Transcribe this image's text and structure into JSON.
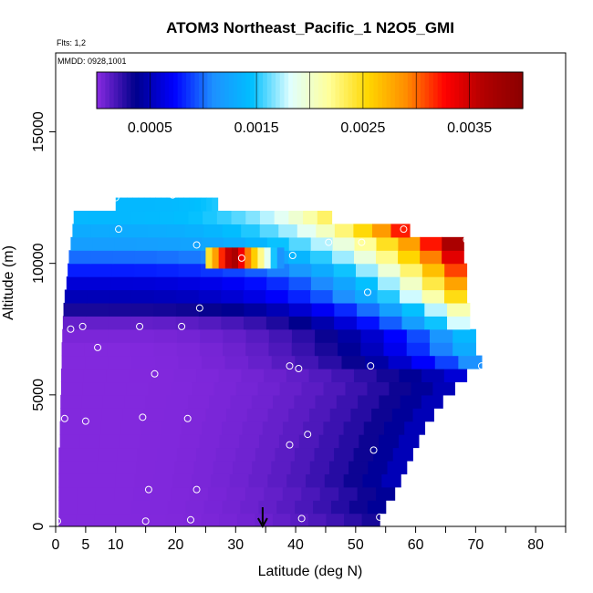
{
  "chart_data": {
    "type": "heatmap",
    "title": "ATOM3 Northeast_Pacific_1 N2O5_GMI",
    "flights_label": "Flts: 1,2",
    "dates_label": "MMDD: 0928,1001",
    "xlabel": "Latitude (deg N)",
    "ylabel": "Altitude (m)",
    "xlim": [
      0,
      85
    ],
    "ylim": [
      0,
      18000
    ],
    "x_ticks": [
      0,
      5,
      10,
      20,
      30,
      40,
      50,
      60,
      70,
      80
    ],
    "x_minor_ticks": [
      15,
      25,
      35,
      45,
      55,
      65,
      75,
      85
    ],
    "y_ticks": [
      0,
      5000,
      10000,
      15000
    ],
    "colorbar": {
      "vmin": 0,
      "vmax": 0.004,
      "ticks": [
        0.0005,
        0.0015,
        0.0025,
        0.0035
      ],
      "tick_labels": [
        "0.0005",
        "0.0015",
        "0.0025",
        "0.0035"
      ],
      "colors": [
        "#8a2be2",
        "#00008b",
        "#0000ff",
        "#1e90ff",
        "#00bfff",
        "#e0ffff",
        "#ffff99",
        "#ffd700",
        "#ff8c00",
        "#ff0000",
        "#b00000",
        "#8b0000"
      ]
    },
    "grid": false,
    "curtain_bands": [
      {
        "y0": 0,
        "y1": 500,
        "x0": 0.5,
        "x1": 54,
        "v": 2e-05,
        "edge_v": 0.0003
      },
      {
        "y0": 500,
        "y1": 1000,
        "x0": 0.5,
        "x1": 55,
        "v": 2e-05,
        "edge_v": 0.0004
      },
      {
        "y0": 1000,
        "y1": 1500,
        "x0": 0.5,
        "x1": 56.5,
        "v": 2e-05,
        "edge_v": 0.0004
      },
      {
        "y0": 1500,
        "y1": 2000,
        "x0": 0.5,
        "x1": 57.5,
        "v": 2e-05,
        "edge_v": 0.0005
      },
      {
        "y0": 2000,
        "y1": 2500,
        "x0": 0.5,
        "x1": 58.5,
        "v": 2e-05,
        "edge_v": 0.0005
      },
      {
        "y0": 2500,
        "y1": 3000,
        "x0": 0.5,
        "x1": 59.5,
        "v": 2e-05,
        "edge_v": 0.0005
      },
      {
        "y0": 3000,
        "y1": 3500,
        "x0": 0.7,
        "x1": 60.5,
        "v": 2e-05,
        "edge_v": 0.0005
      },
      {
        "y0": 3500,
        "y1": 4000,
        "x0": 0.7,
        "x1": 61.5,
        "v": 2e-05,
        "edge_v": 0.0005
      },
      {
        "y0": 4000,
        "y1": 4500,
        "x0": 0.8,
        "x1": 63,
        "v": 2e-05,
        "edge_v": 0.0005
      },
      {
        "y0": 4500,
        "y1": 5000,
        "x0": 0.8,
        "x1": 64.5,
        "v": 2e-05,
        "edge_v": 0.0005
      },
      {
        "y0": 5000,
        "y1": 5500,
        "x0": 0.9,
        "x1": 66.5,
        "v": 2e-05,
        "edge_v": 0.0005
      },
      {
        "y0": 5500,
        "y1": 6000,
        "x0": 0.9,
        "x1": 68.5,
        "v": 2e-05,
        "edge_v": 0.0006
      },
      {
        "y0": 6000,
        "y1": 6500,
        "x0": 1.0,
        "x1": 71,
        "v": 2e-05,
        "edge_v": 0.0011
      },
      {
        "y0": 6500,
        "y1": 7000,
        "x0": 1.0,
        "x1": 70,
        "v": 2e-05,
        "edge_v": 0.0013
      },
      {
        "y0": 7000,
        "y1": 7500,
        "x0": 1.1,
        "x1": 70,
        "v": 4e-05,
        "edge_v": 0.0014
      },
      {
        "y0": 7500,
        "y1": 8000,
        "x0": 1.2,
        "x1": 69,
        "v": 0.0001,
        "edge_v": 0.0018
      },
      {
        "y0": 8000,
        "y1": 8500,
        "x0": 1.3,
        "x1": 69,
        "v": 0.0003,
        "edge_v": 0.0021
      },
      {
        "y0": 8500,
        "y1": 9000,
        "x0": 1.5,
        "x1": 68.5,
        "v": 0.0005,
        "edge_v": 0.0025
      },
      {
        "y0": 9000,
        "y1": 9500,
        "x0": 1.8,
        "x1": 68.5,
        "v": 0.0006,
        "edge_v": 0.0028
      },
      {
        "y0": 9500,
        "y1": 10000,
        "x0": 2.0,
        "x1": 68.5,
        "v": 0.0008,
        "edge_v": 0.0031
      },
      {
        "y0": 10000,
        "y1": 10500,
        "x0": 2.2,
        "x1": 68,
        "v": 0.001,
        "edge_v": 0.0034
      },
      {
        "y0": 10500,
        "y1": 11000,
        "x0": 2.5,
        "x1": 68,
        "v": 0.0012,
        "edge_v": 0.0037
      },
      {
        "y0": 11000,
        "y1": 11500,
        "x0": 2.8,
        "x1": 59,
        "v": 0.0013,
        "edge_v": 0.0032
      },
      {
        "y0": 11500,
        "y1": 12000,
        "x0": 3.0,
        "x1": 46,
        "v": 0.0014,
        "edge_v": 0.0023
      },
      {
        "y0": 12000,
        "y1": 12500,
        "x0": 10,
        "x1": 27,
        "v": 0.0014,
        "edge_v": 0.0015
      }
    ],
    "hotspot": {
      "y0": 9800,
      "y1": 10600,
      "x0": 25,
      "x1": 38,
      "v": 0.0038
    },
    "flight_points": [
      {
        "x": 0.3,
        "y": 200
      },
      {
        "x": 15,
        "y": 200
      },
      {
        "x": 22.5,
        "y": 250
      },
      {
        "x": 41,
        "y": 300
      },
      {
        "x": 54,
        "y": 350
      },
      {
        "x": 15.5,
        "y": 1400
      },
      {
        "x": 23.5,
        "y": 1400
      },
      {
        "x": 53,
        "y": 2900
      },
      {
        "x": 39,
        "y": 3100
      },
      {
        "x": 42,
        "y": 3500
      },
      {
        "x": 1.5,
        "y": 4100
      },
      {
        "x": 5,
        "y": 4000
      },
      {
        "x": 14.5,
        "y": 4150
      },
      {
        "x": 22,
        "y": 4100
      },
      {
        "x": 16.5,
        "y": 5800
      },
      {
        "x": 39,
        "y": 6100
      },
      {
        "x": 40.5,
        "y": 6000
      },
      {
        "x": 52.5,
        "y": 6100
      },
      {
        "x": 71,
        "y": 6100
      },
      {
        "x": 7,
        "y": 6800
      },
      {
        "x": 2.5,
        "y": 7500
      },
      {
        "x": 4.5,
        "y": 7600
      },
      {
        "x": 14,
        "y": 7600
      },
      {
        "x": 21,
        "y": 7600
      },
      {
        "x": 24,
        "y": 8300
      },
      {
        "x": 52,
        "y": 8900
      },
      {
        "x": 31,
        "y": 10200
      },
      {
        "x": 39.5,
        "y": 10300
      },
      {
        "x": 23.5,
        "y": 10700
      },
      {
        "x": 45.5,
        "y": 10800
      },
      {
        "x": 51,
        "y": 10800
      },
      {
        "x": 68.5,
        "y": 10900
      },
      {
        "x": 58,
        "y": 11300
      },
      {
        "x": 10.5,
        "y": 11300
      },
      {
        "x": 2,
        "y": 12000
      },
      {
        "x": 10,
        "y": 12500
      },
      {
        "x": 19.5,
        "y": 12600
      }
    ],
    "marker_arrow_x": 34.5
  }
}
